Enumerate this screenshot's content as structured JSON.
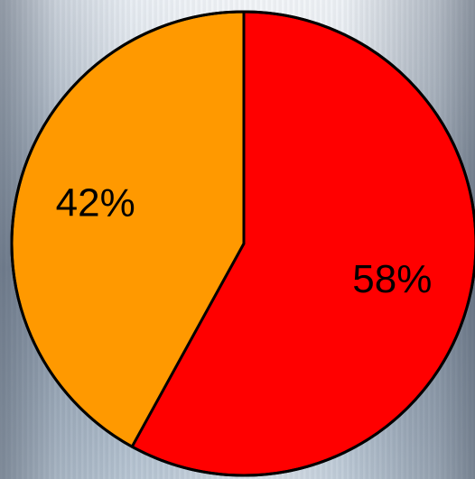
{
  "chart_data": {
    "type": "pie",
    "title": "",
    "slices": [
      {
        "value": 58,
        "label": "58%",
        "color": "#FF0000"
      },
      {
        "value": 42,
        "label": "42%",
        "color": "#FF9900"
      }
    ],
    "start_angle_deg": 0,
    "direction": "clockwise",
    "slice_border_color": "#000000",
    "legend": "none"
  }
}
